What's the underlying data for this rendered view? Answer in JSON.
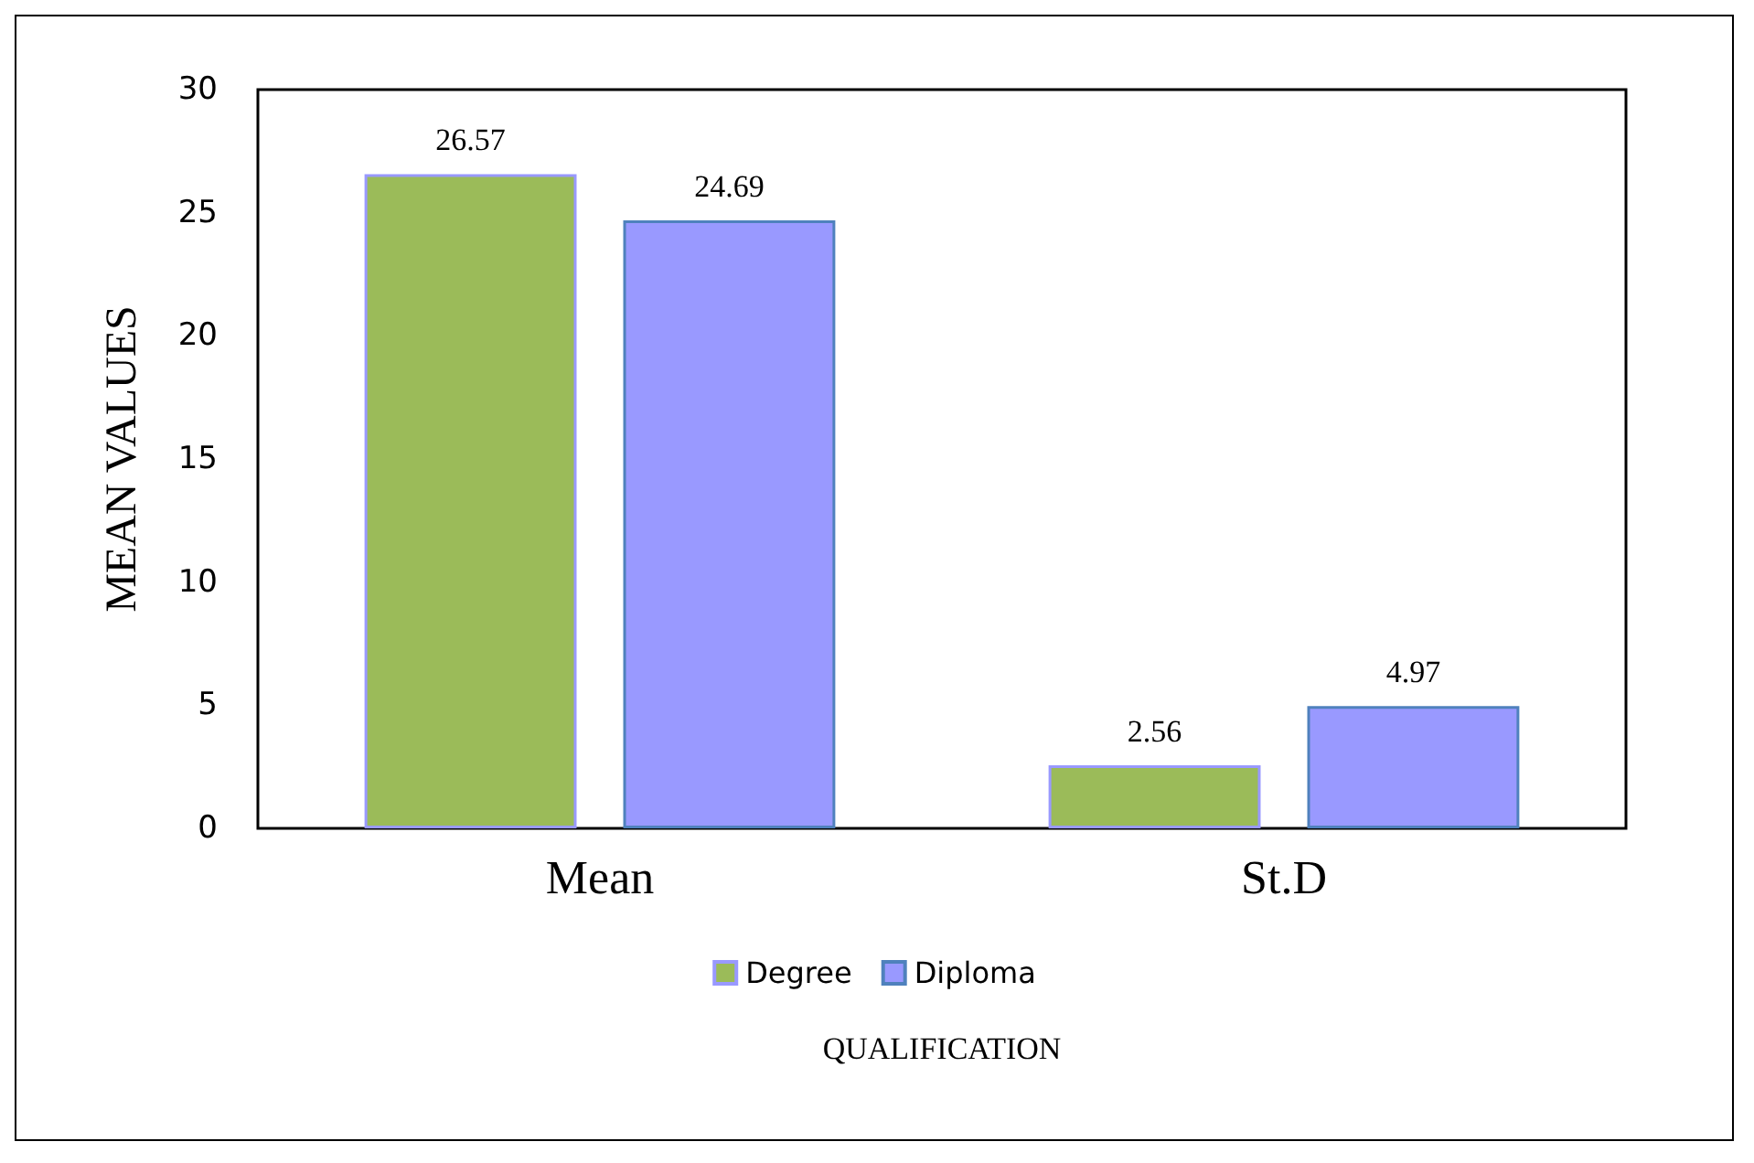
{
  "chart_data": {
    "type": "bar",
    "xlabel": "QUALIFICATION",
    "ylabel": "MEAN VALUES",
    "categories": [
      "Mean",
      "St.D"
    ],
    "series": [
      {
        "name": "Degree",
        "color": "#9bbb59",
        "values": [
          26.57,
          2.56
        ]
      },
      {
        "name": "Diploma",
        "color": "#9999ff",
        "values": [
          24.69,
          4.97
        ]
      }
    ],
    "ylim": [
      0,
      30
    ],
    "yticks": [
      0,
      5,
      10,
      15,
      20,
      25,
      30
    ],
    "grid": false,
    "legend": "bottom",
    "data_labels": true
  }
}
